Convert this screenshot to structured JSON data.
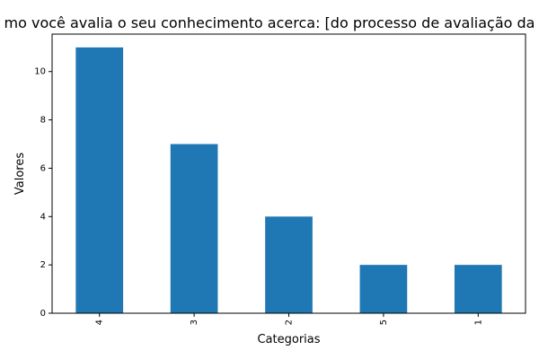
{
  "chart_data": {
    "type": "bar",
    "title": "mo você avalia o seu conhecimento acerca: [do processo de avaliação da",
    "xlabel": "Categorias",
    "ylabel": "Valores",
    "categories": [
      "4",
      "3",
      "2",
      "5",
      "1"
    ],
    "values": [
      11,
      7,
      4,
      2,
      2
    ],
    "ylim": [
      0,
      11.55
    ],
    "yticks": [
      0,
      2,
      4,
      6,
      8,
      10
    ],
    "grid": false,
    "legend": "none",
    "bar_color": "#1f77b4"
  }
}
